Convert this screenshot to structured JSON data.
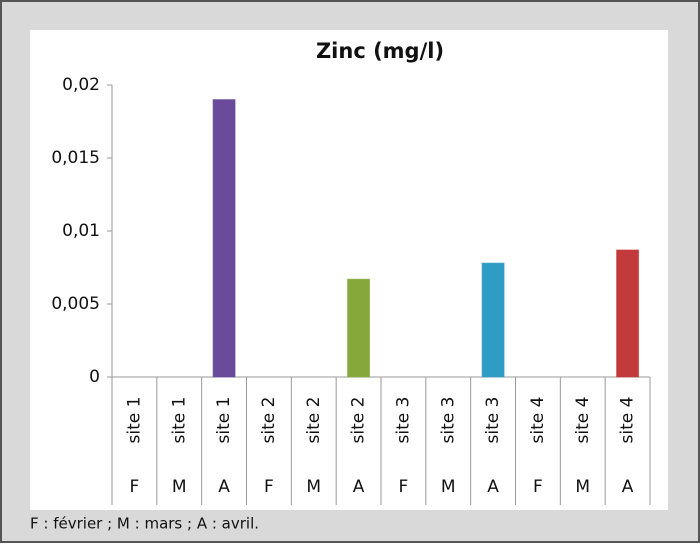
{
  "chart_data": {
    "type": "bar",
    "title": "Zinc (mg/l)",
    "categories": [
      "site 1",
      "site 1",
      "site 1",
      "site 2",
      "site 2",
      "site 2",
      "site 3",
      "site 3",
      "site 3",
      "site 4",
      "site 4",
      "site 4"
    ],
    "months": [
      "F",
      "M",
      "A",
      "F",
      "M",
      "A",
      "F",
      "M",
      "A",
      "F",
      "M",
      "A"
    ],
    "values": [
      0,
      0,
      0.019,
      0,
      0,
      0.0067,
      0,
      0,
      0.0078,
      0,
      0,
      0.0087
    ],
    "colors": [
      "#6a4a9a",
      "#6a4a9a",
      "#6a4a9a",
      "#86a83a",
      "#86a83a",
      "#86a83a",
      "#2e9cc4",
      "#2e9cc4",
      "#2e9cc4",
      "#c23a3a",
      "#c23a3a",
      "#c23a3a"
    ],
    "ylim": [
      0,
      0.02
    ],
    "yticks": [
      0,
      {
        "value": 0.005,
        "label": "0,005"
      },
      {
        "value": 0.01,
        "label": "0,01"
      },
      {
        "value": 0.015,
        "label": "0,015"
      },
      {
        "value": 0.02,
        "label": "0,02"
      }
    ],
    "note": "F : février ; M : mars ; A : avril."
  }
}
